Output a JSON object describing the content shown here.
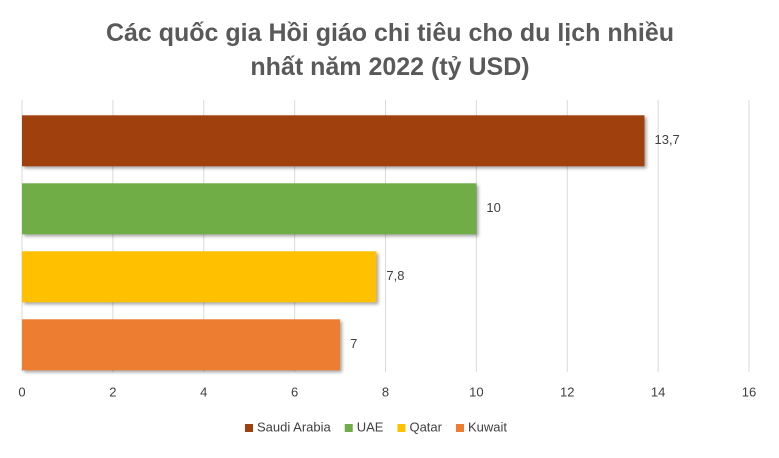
{
  "chart_data": {
    "type": "bar",
    "horizontal": true,
    "title": "Các quốc gia Hồi giáo chi tiêu cho du lịch nhiều nhất năm 2022 (tỷ USD)",
    "series": [
      {
        "name": "Saudi Arabia",
        "color": "#a0410d",
        "values": [
          13.7
        ],
        "value_labels": [
          "13,7"
        ]
      },
      {
        "name": "UAE",
        "color": "#70ad47",
        "values": [
          10
        ]
      },
      {
        "name": "Qatar",
        "color": "#ffc000",
        "values": [
          7.8
        ],
        "value_labels": [
          "7,8"
        ]
      },
      {
        "name": "Kuwait",
        "color": "#ed7d31",
        "values": [
          7
        ]
      }
    ],
    "xlim": [
      0,
      16
    ],
    "xticks": [
      0,
      2,
      4,
      6,
      8,
      10,
      12,
      14,
      16
    ],
    "grid": true,
    "legend": "bottom"
  }
}
